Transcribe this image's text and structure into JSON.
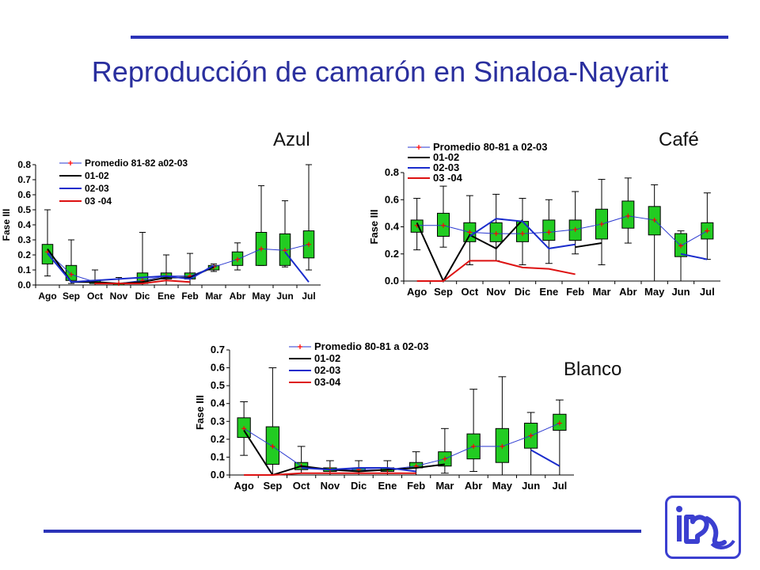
{
  "slide": {
    "title": "Reproducción de camarón en Sinaloa-Nayarit",
    "colors": {
      "title": "#2a2f9e",
      "rules": "#2b33b8",
      "box_fill": "#22cc22",
      "mean_marker": "#ff0000"
    }
  },
  "chart_data": [
    {
      "id": "azul",
      "panel_label": "Azul",
      "type": "box+line",
      "ylabel": "Fase III",
      "ylim": [
        0,
        0.8
      ],
      "yticks": [
        "0.0",
        "0.1",
        "0.2",
        "0.3",
        "0.4",
        "0.5",
        "0.6",
        "0.7",
        "0.8"
      ],
      "categories": [
        "Ago",
        "Sep",
        "Oct",
        "Nov",
        "Dic",
        "Ene",
        "Feb",
        "Mar",
        "Abr",
        "May",
        "Jun",
        "Jul"
      ],
      "boxes": [
        {
          "min": 0.06,
          "q1": 0.14,
          "q3": 0.27,
          "max": 0.5
        },
        {
          "min": 0.01,
          "q1": 0.03,
          "q3": 0.13,
          "max": 0.3
        },
        {
          "min": 0.0,
          "q1": 0.01,
          "q3": 0.03,
          "max": 0.1
        },
        {
          "min": 0.0,
          "q1": 0.0,
          "q3": 0.01,
          "max": 0.05
        },
        {
          "min": 0.0,
          "q1": 0.01,
          "q3": 0.08,
          "max": 0.35
        },
        {
          "min": 0.0,
          "q1": 0.04,
          "q3": 0.08,
          "max": 0.2
        },
        {
          "min": 0.0,
          "q1": 0.04,
          "q3": 0.08,
          "max": 0.21
        },
        {
          "min": 0.09,
          "q1": 0.1,
          "q3": 0.13,
          "max": 0.14
        },
        {
          "min": 0.1,
          "q1": 0.13,
          "q3": 0.22,
          "max": 0.28
        },
        {
          "min": 0.13,
          "q1": 0.13,
          "q3": 0.35,
          "max": 0.66
        },
        {
          "min": 0.12,
          "q1": 0.13,
          "q3": 0.34,
          "max": 0.56
        },
        {
          "min": 0.1,
          "q1": 0.18,
          "q3": 0.36,
          "max": 0.8
        }
      ],
      "series": [
        {
          "name": "Promedio 81-82 a02-03",
          "color": "#2a38d0",
          "marker": "plus",
          "values": [
            0.22,
            0.07,
            0.02,
            0.01,
            0.03,
            0.06,
            0.06,
            0.12,
            0.17,
            0.24,
            0.23,
            0.27
          ]
        },
        {
          "name": "01-02",
          "color": "#000000",
          "values": [
            0.24,
            0.02,
            0.02,
            0.01,
            0.02,
            0.05,
            0.05,
            0.12,
            null,
            null,
            null,
            null
          ]
        },
        {
          "name": "02-03",
          "color": "#1a2ccc",
          "values": [
            0.21,
            0.02,
            0.03,
            0.04,
            0.05,
            0.06,
            0.04,
            0.13,
            null,
            null,
            0.22,
            0.02
          ]
        },
        {
          "name": "03 -04",
          "color": "#dd1111",
          "values": [
            null,
            null,
            0.01,
            0.01,
            0.01,
            0.03,
            0.02,
            null,
            null,
            null,
            null,
            null
          ]
        }
      ]
    },
    {
      "id": "cafe",
      "panel_label": "Café",
      "type": "box+line",
      "ylabel": "Fase III",
      "ylim": [
        0,
        0.8
      ],
      "yticks": [
        "0.0",
        "0.2",
        "0.4",
        "0.6",
        "0.8"
      ],
      "categories": [
        "Ago",
        "Sep",
        "Oct",
        "Nov",
        "Dic",
        "Ene",
        "Feb",
        "Mar",
        "Abr",
        "May",
        "Jun",
        "Jul"
      ],
      "boxes": [
        {
          "min": 0.23,
          "q1": 0.36,
          "q3": 0.45,
          "max": 0.61
        },
        {
          "min": 0.25,
          "q1": 0.33,
          "q3": 0.5,
          "max": 0.7
        },
        {
          "min": 0.12,
          "q1": 0.29,
          "q3": 0.43,
          "max": 0.63
        },
        {
          "min": 0.15,
          "q1": 0.29,
          "q3": 0.43,
          "max": 0.64
        },
        {
          "min": 0.12,
          "q1": 0.29,
          "q3": 0.44,
          "max": 0.61
        },
        {
          "min": 0.13,
          "q1": 0.3,
          "q3": 0.45,
          "max": 0.6
        },
        {
          "min": 0.2,
          "q1": 0.3,
          "q3": 0.45,
          "max": 0.66
        },
        {
          "min": 0.12,
          "q1": 0.31,
          "q3": 0.53,
          "max": 0.75
        },
        {
          "min": 0.28,
          "q1": 0.39,
          "q3": 0.59,
          "max": 0.76
        },
        {
          "min": 0.0,
          "q1": 0.34,
          "q3": 0.55,
          "max": 0.71
        },
        {
          "min": 0.0,
          "q1": 0.18,
          "q3": 0.35,
          "max": 0.37
        },
        {
          "min": 0.16,
          "q1": 0.31,
          "q3": 0.43,
          "max": 0.65
        }
      ],
      "series": [
        {
          "name": "Promedio 80-81 a 02-03",
          "color": "#2a38d0",
          "marker": "plus",
          "values": [
            0.41,
            0.41,
            0.36,
            0.35,
            0.35,
            0.36,
            0.38,
            0.42,
            0.48,
            0.45,
            0.26,
            0.37
          ]
        },
        {
          "name": "01-02",
          "color": "#000000",
          "values": [
            0.43,
            0.0,
            0.34,
            0.24,
            0.45,
            null,
            0.25,
            0.28,
            null,
            null,
            null,
            null
          ]
        },
        {
          "name": "02-03",
          "color": "#1a2ccc",
          "values": [
            null,
            null,
            0.33,
            0.46,
            0.44,
            0.24,
            0.27,
            null,
            null,
            null,
            0.2,
            0.16
          ]
        },
        {
          "name": "03 -04",
          "color": "#dd1111",
          "values": [
            0.0,
            0.0,
            0.15,
            0.15,
            0.1,
            0.09,
            0.05,
            null,
            null,
            null,
            null,
            null
          ]
        }
      ]
    },
    {
      "id": "blanco",
      "panel_label": "Blanco",
      "type": "box+line",
      "ylabel": "Fase III",
      "ylim": [
        0,
        0.7
      ],
      "yticks": [
        "0.0",
        "0.1",
        "0.2",
        "0.3",
        "0.4",
        "0.5",
        "0.6",
        "0.7"
      ],
      "categories": [
        "Ago",
        "Sep",
        "Oct",
        "Nov",
        "Dic",
        "Ene",
        "Feb",
        "Mar",
        "Abr",
        "May",
        "Jun",
        "Jul"
      ],
      "boxes": [
        {
          "min": 0.11,
          "q1": 0.21,
          "q3": 0.32,
          "max": 0.41
        },
        {
          "min": 0.0,
          "q1": 0.06,
          "q3": 0.27,
          "max": 0.6
        },
        {
          "min": 0.01,
          "q1": 0.03,
          "q3": 0.07,
          "max": 0.16
        },
        {
          "min": 0.0,
          "q1": 0.02,
          "q3": 0.04,
          "max": 0.08
        },
        {
          "min": 0.0,
          "q1": 0.02,
          "q3": 0.04,
          "max": 0.08
        },
        {
          "min": 0.0,
          "q1": 0.02,
          "q3": 0.04,
          "max": 0.08
        },
        {
          "min": 0.0,
          "q1": 0.04,
          "q3": 0.07,
          "max": 0.13
        },
        {
          "min": 0.01,
          "q1": 0.05,
          "q3": 0.13,
          "max": 0.26
        },
        {
          "min": 0.02,
          "q1": 0.09,
          "q3": 0.23,
          "max": 0.48
        },
        {
          "min": 0.0,
          "q1": 0.07,
          "q3": 0.26,
          "max": 0.55
        },
        {
          "min": 0.0,
          "q1": 0.15,
          "q3": 0.29,
          "max": 0.35
        },
        {
          "min": 0.0,
          "q1": 0.25,
          "q3": 0.34,
          "max": 0.42
        }
      ],
      "series": [
        {
          "name": "Promedio 80-81 a 02-03",
          "color": "#2a38d0",
          "marker": "plus",
          "values": [
            0.26,
            0.16,
            0.05,
            0.03,
            0.03,
            0.03,
            0.05,
            0.09,
            0.16,
            0.16,
            0.22,
            0.29
          ]
        },
        {
          "name": "01-02",
          "color": "#000000",
          "values": [
            0.25,
            0.0,
            0.05,
            0.03,
            0.02,
            0.03,
            0.04,
            0.06,
            null,
            null,
            null,
            null
          ]
        },
        {
          "name": "02-03",
          "color": "#1a2ccc",
          "values": [
            null,
            null,
            0.04,
            0.03,
            0.04,
            0.04,
            0.02,
            null,
            null,
            null,
            0.14,
            0.05
          ]
        },
        {
          "name": "03-04",
          "color": "#dd1111",
          "values": [
            0.0,
            0.0,
            0.01,
            0.01,
            0.01,
            0.01,
            0.01,
            null,
            null,
            null,
            null,
            null
          ]
        }
      ]
    }
  ]
}
